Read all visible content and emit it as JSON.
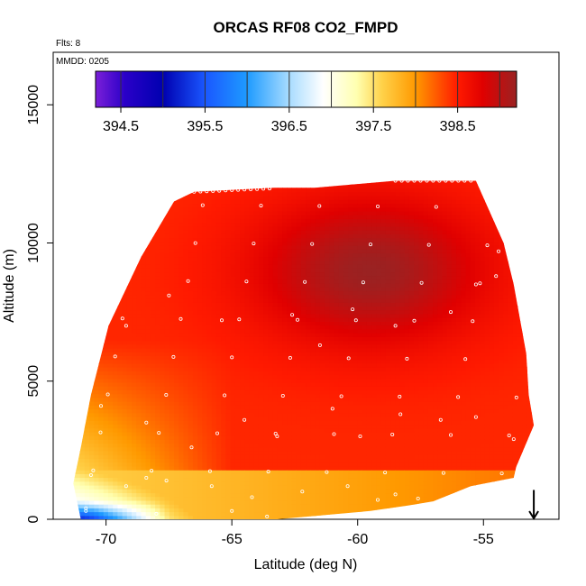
{
  "chart_data": {
    "type": "heatmap",
    "title": "ORCAS RF08 CO2_FMPD",
    "annotations": [
      "Flts: 8",
      "MMDD: 0205"
    ],
    "xlabel": "Latitude (deg N)",
    "ylabel": "Altitude (m)",
    "xlim": [
      -72.1,
      -52.0
    ],
    "ylim": [
      0,
      16900
    ],
    "x_ticks": [
      -70,
      -65,
      -60,
      -55
    ],
    "x_tick_labels": [
      "-70",
      "-65",
      "-60",
      "-55"
    ],
    "y_ticks": [
      0,
      5000,
      10000,
      15000
    ],
    "y_tick_labels": [
      "0",
      "5000",
      "10000",
      "15000"
    ],
    "colorbar": {
      "range": [
        394.2,
        399.2
      ],
      "tick_values": [
        394.5,
        395.5,
        396.5,
        397.5,
        398.5
      ],
      "tick_labels": [
        "394.5",
        "395.5",
        "396.5",
        "397.5",
        "398.5"
      ],
      "color_stops": [
        {
          "value": 394.2,
          "color": "#7b1fd8"
        },
        {
          "value": 394.55,
          "color": "#2a00c8"
        },
        {
          "value": 395.0,
          "color": "#0000b0"
        },
        {
          "value": 395.5,
          "color": "#1a57ff"
        },
        {
          "value": 396.0,
          "color": "#1e9bff"
        },
        {
          "value": 396.5,
          "color": "#a8dcff"
        },
        {
          "value": 396.9,
          "color": "#ffffff"
        },
        {
          "value": 397.3,
          "color": "#ffffb0"
        },
        {
          "value": 397.6,
          "color": "#ffd24a"
        },
        {
          "value": 398.0,
          "color": "#ff9900"
        },
        {
          "value": 398.5,
          "color": "#ff1a00"
        },
        {
          "value": 398.8,
          "color": "#e00000"
        },
        {
          "value": 399.2,
          "color": "#9a2222"
        }
      ]
    },
    "field_extent": {
      "top_boundary": [
        [
          -71.0,
          0
        ],
        [
          -71.3,
          1300
        ],
        [
          -71.0,
          2600
        ],
        [
          -70.6,
          4500
        ],
        [
          -69.9,
          7000
        ],
        [
          -68.6,
          9500
        ],
        [
          -67.3,
          11500
        ],
        [
          -66.5,
          11850
        ],
        [
          -63.3,
          12000
        ],
        [
          -61.7,
          12000
        ],
        [
          -58.5,
          12250
        ],
        [
          -55.3,
          12250
        ],
        [
          -54.2,
          10000
        ],
        [
          -53.8,
          8500
        ],
        [
          -53.3,
          6000
        ],
        [
          -53.2,
          4500
        ],
        [
          -53.0,
          3400
        ],
        [
          -53.7,
          1900
        ],
        [
          -53.8,
          1500
        ],
        [
          -55.5,
          1200
        ],
        [
          -57.0,
          650
        ],
        [
          -58.0,
          500
        ],
        [
          -59.5,
          300
        ],
        [
          -63.2,
          0
        ]
      ],
      "description_values": {
        "upper_core_value": 399.2,
        "mid_troposphere_value": 398.7,
        "low_south_value": 397.7,
        "surface_min_value": 394.5
      }
    },
    "flight_track": [
      [
        -66.5,
        11850
      ],
      [
        -63.3,
        12000
      ],
      [
        -58.5,
        12250
      ],
      [
        -55.3,
        12250
      ],
      [
        -69.2,
        7000
      ],
      [
        -67.5,
        8100
      ],
      [
        -65.4,
        7200
      ],
      [
        -62.6,
        7400
      ],
      [
        -61.5,
        6300
      ],
      [
        -60.2,
        7600
      ],
      [
        -58.5,
        7000
      ],
      [
        -56.3,
        7500
      ],
      [
        -55.3,
        8500
      ],
      [
        -54.5,
        8800
      ],
      [
        -54.4,
        9700
      ],
      [
        -70.2,
        4100
      ],
      [
        -68.4,
        3500
      ],
      [
        -66.6,
        2600
      ],
      [
        -64.5,
        3600
      ],
      [
        -63.2,
        3000
      ],
      [
        -61.0,
        4000
      ],
      [
        -59.9,
        3000
      ],
      [
        -58.3,
        3800
      ],
      [
        -56.7,
        3600
      ],
      [
        -55.3,
        3700
      ],
      [
        -53.8,
        2900
      ],
      [
        -70.6,
        1600
      ],
      [
        -69.2,
        1200
      ],
      [
        -68.4,
        1500
      ],
      [
        -67.6,
        1400
      ],
      [
        -65.8,
        1200
      ],
      [
        -64.2,
        800
      ],
      [
        -62.2,
        1000
      ],
      [
        -60.4,
        1200
      ],
      [
        -59.2,
        700
      ],
      [
        -58.5,
        900
      ],
      [
        -57.6,
        750
      ],
      [
        -70.8,
        300
      ],
      [
        -68.0,
        200
      ],
      [
        -65.0,
        300
      ],
      [
        -63.6,
        100
      ]
    ],
    "arrow": {
      "lat": -53.0,
      "alt_top": 800,
      "alt_bottom": 0,
      "direction": "down"
    }
  }
}
